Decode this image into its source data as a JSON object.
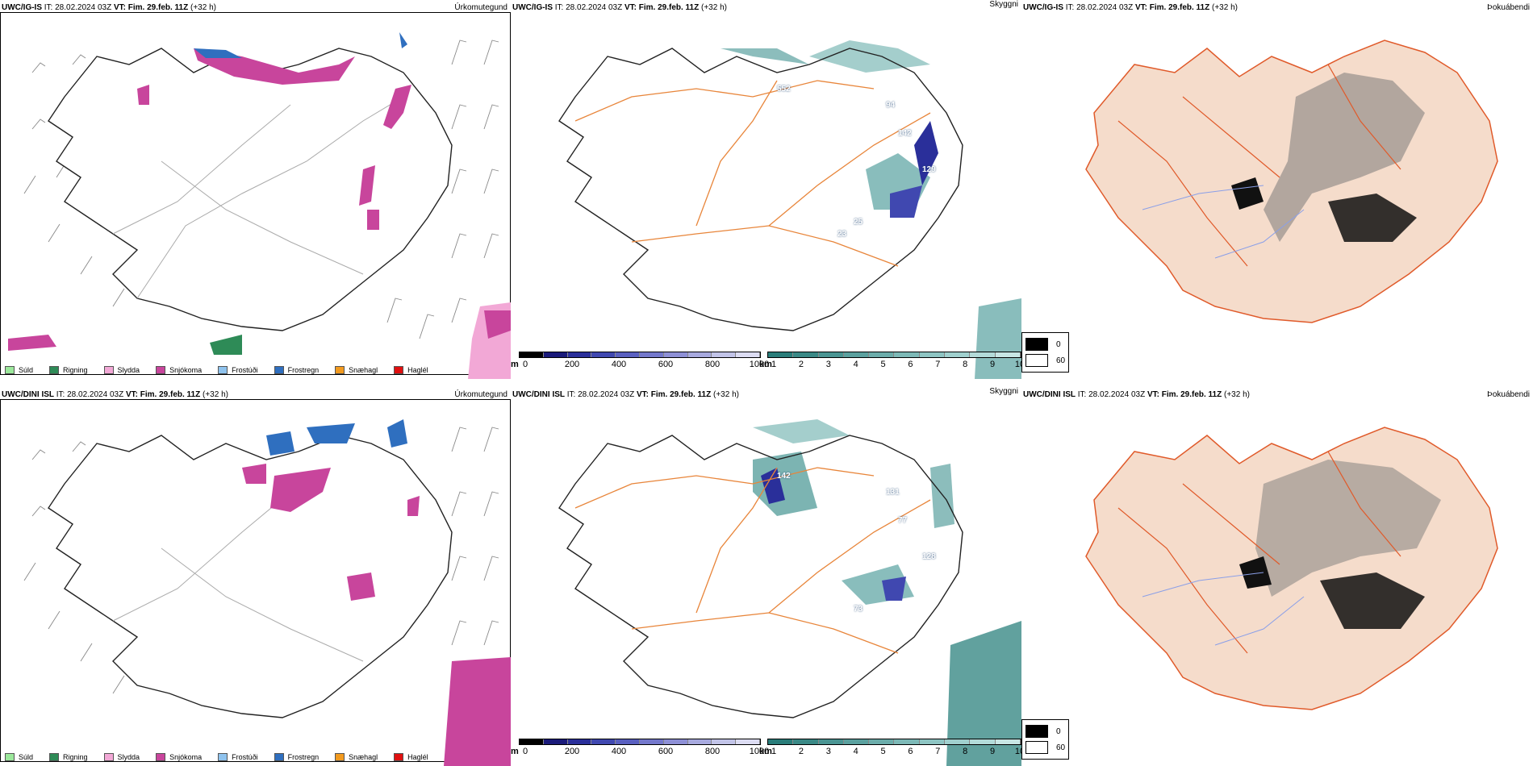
{
  "rows": [
    {
      "model": "UWC/IG-IS",
      "it_label": "IT:",
      "it_value": "28.02.2024 03Z",
      "vt_label": "VT:",
      "vt_value": "Fim. 29.feb. 11Z",
      "lead": "(+32 h)"
    },
    {
      "model": "UWC/DINI ISL",
      "it_label": "IT:",
      "it_value": "28.02.2024 03Z",
      "vt_label": "VT:",
      "vt_value": "Fim. 29.feb. 11Z",
      "lead": "(+32 h)"
    }
  ],
  "panel_titles": {
    "precip": "Úrkomutegund",
    "visibility": "Skyggni",
    "fog": "Þokuábendi"
  },
  "precip_legend": [
    {
      "label": "Súld",
      "color": "#9be89b"
    },
    {
      "label": "Rigning",
      "color": "#2e8b57"
    },
    {
      "label": "Slydda",
      "color": "#f2a8d6"
    },
    {
      "label": "Snjókoma",
      "color": "#c8459c"
    },
    {
      "label": "Frostúði",
      "color": "#8fc3ee"
    },
    {
      "label": "Frostregn",
      "color": "#2f6fbf"
    },
    {
      "label": "Snæhagl",
      "color": "#f29a1f"
    },
    {
      "label": "Haglél",
      "color": "#e01010"
    }
  ],
  "visibility_m_scale": {
    "unit": "m",
    "ticks": [
      "0",
      "200",
      "400",
      "600",
      "800",
      "1000"
    ],
    "colors": [
      "#000000",
      "#1a1a7a",
      "#2a2f9a",
      "#4048b0",
      "#5a60c0",
      "#7478cc",
      "#8e90d6",
      "#a8aadf",
      "#c2c4e8",
      "#dcdcf2"
    ]
  },
  "visibility_km_scale": {
    "unit": "km",
    "ticks": [
      "1",
      "2",
      "3",
      "4",
      "5",
      "6",
      "7",
      "8",
      "9",
      "10"
    ],
    "colors": [
      "#2a7d7a",
      "#3a8986",
      "#4a9593",
      "#5ba19f",
      "#6cadab",
      "#7db9b7",
      "#8ec5c3",
      "#a0d0ce",
      "#b3dbd9",
      "#c8e6e4"
    ]
  },
  "fog_legend": [
    {
      "label": "0",
      "color": "#000000"
    },
    {
      "label": "60",
      "color": "#ffffff"
    }
  ],
  "cloud_labels_top": [
    "552",
    "94",
    "142",
    "129",
    "25",
    "23"
  ],
  "cloud_labels_bottom": [
    "142",
    "131",
    "77",
    "128",
    "73"
  ]
}
